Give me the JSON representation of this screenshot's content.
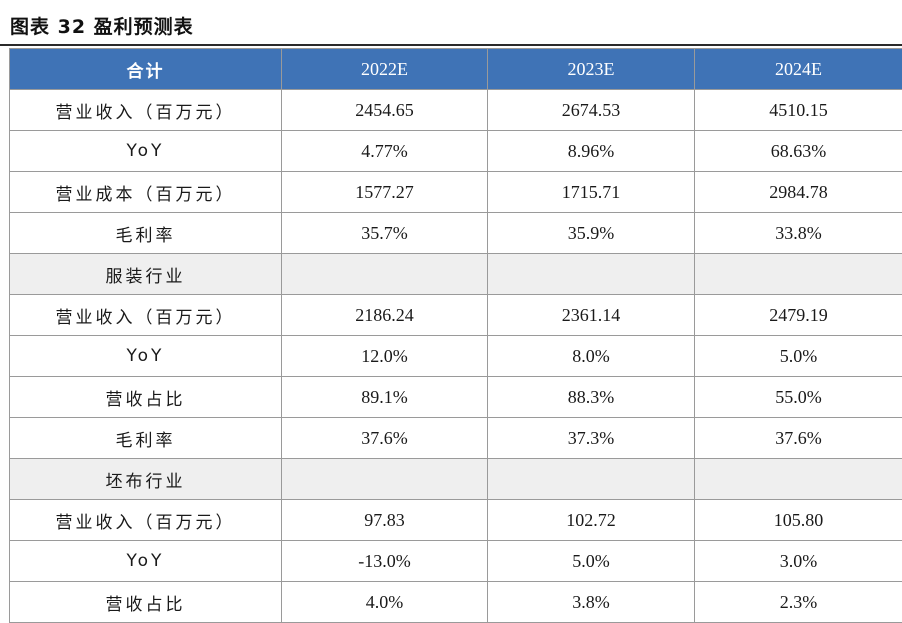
{
  "title": "图表 32 盈利预测表",
  "table": {
    "headers": [
      "合计",
      "2022E",
      "2023E",
      "2024E"
    ],
    "rows": [
      {
        "label": "营业收入（百万元）",
        "values": [
          "2454.65",
          "2674.53",
          "4510.15"
        ],
        "section": false
      },
      {
        "label": "YoY",
        "values": [
          "4.77%",
          "8.96%",
          "68.63%"
        ],
        "section": false
      },
      {
        "label": "营业成本（百万元）",
        "values": [
          "1577.27",
          "1715.71",
          "2984.78"
        ],
        "section": false
      },
      {
        "label": "毛利率",
        "values": [
          "35.7%",
          "35.9%",
          "33.8%"
        ],
        "section": false
      },
      {
        "label": "服装行业",
        "values": [
          "",
          "",
          ""
        ],
        "section": true
      },
      {
        "label": "营业收入（百万元）",
        "values": [
          "2186.24",
          "2361.14",
          "2479.19"
        ],
        "section": false
      },
      {
        "label": "YoY",
        "values": [
          "12.0%",
          "8.0%",
          "5.0%"
        ],
        "section": false
      },
      {
        "label": "营收占比",
        "values": [
          "89.1%",
          "88.3%",
          "55.0%"
        ],
        "section": false
      },
      {
        "label": "毛利率",
        "values": [
          "37.6%",
          "37.3%",
          "37.6%"
        ],
        "section": false
      },
      {
        "label": "坯布行业",
        "values": [
          "",
          "",
          ""
        ],
        "section": true
      },
      {
        "label": "营业收入（百万元）",
        "values": [
          "97.83",
          "102.72",
          "105.80"
        ],
        "section": false
      },
      {
        "label": "YoY",
        "values": [
          "-13.0%",
          "5.0%",
          "3.0%"
        ],
        "section": false
      },
      {
        "label": "营收占比",
        "values": [
          "4.0%",
          "3.8%",
          "2.3%"
        ],
        "section": false
      }
    ]
  }
}
